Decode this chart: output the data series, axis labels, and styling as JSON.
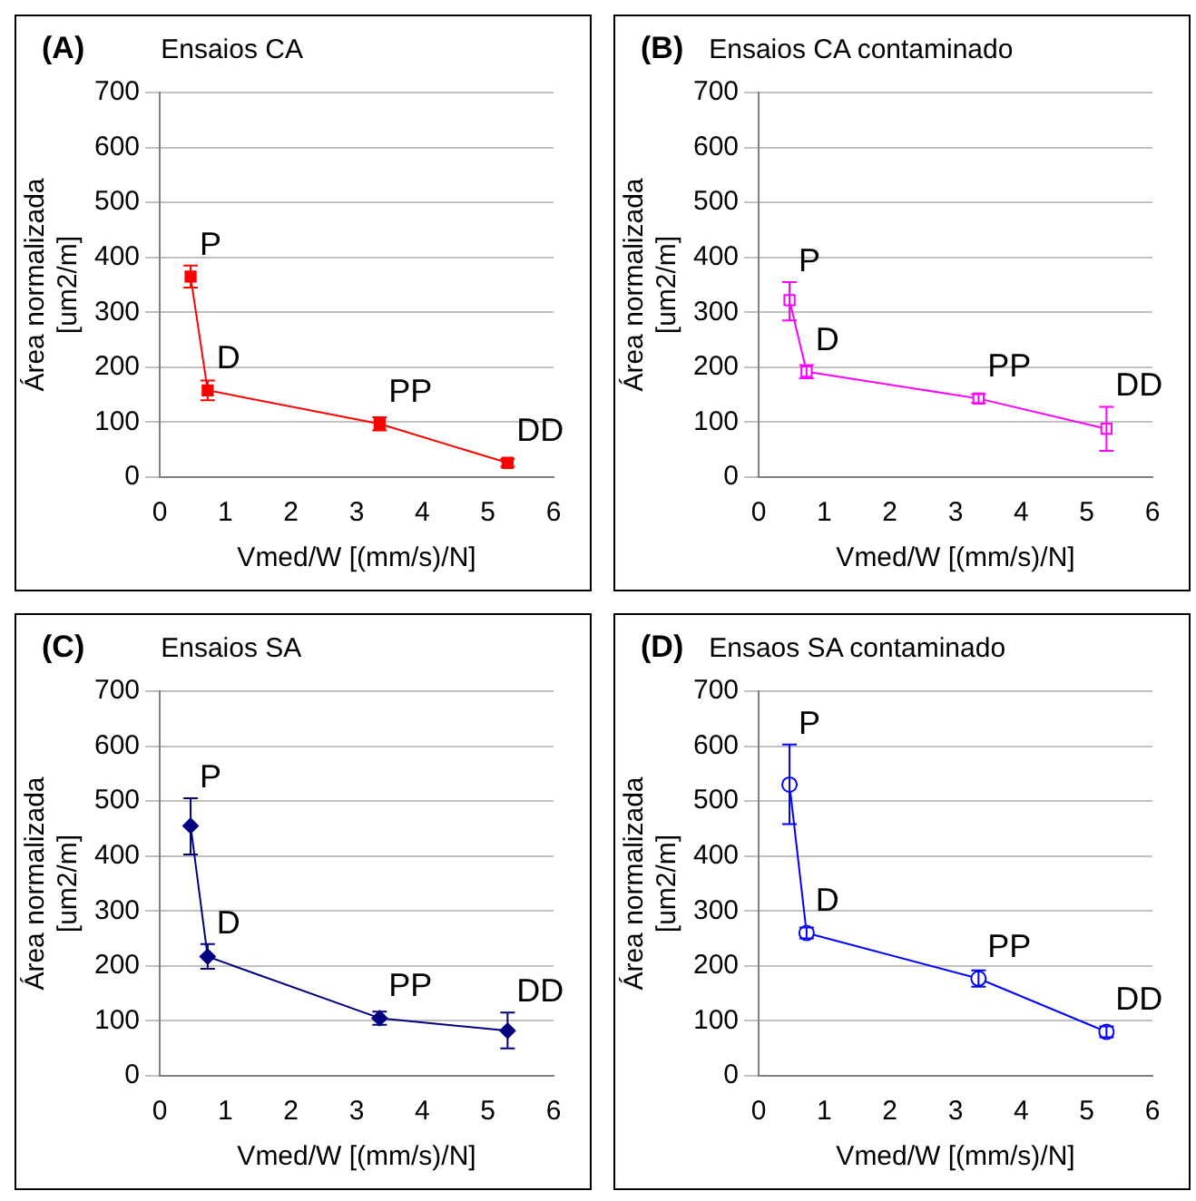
{
  "chart_data": [
    {
      "type": "line",
      "title": "Ensaios CA",
      "annotations": [
        "(A)",
        {
          "text": "P",
          "x": 0.47,
          "y": 365
        },
        {
          "text": "D",
          "x": 0.73,
          "y": 158
        },
        {
          "text": "PP",
          "x": 3.35,
          "y": 97
        },
        {
          "text": "DD",
          "x": 5.3,
          "y": 26
        }
      ],
      "xlabel": "Vmed/W [(mm/s)/N]",
      "ylabel": "Área normalizada [um2/m]",
      "x": [
        0.47,
        0.73,
        3.35,
        5.3
      ],
      "series": [
        {
          "color": "#ff0000",
          "values": [
            365,
            158,
            97,
            26
          ],
          "errors": [
            20,
            18,
            12,
            7
          ]
        }
      ],
      "marker": "square",
      "xlim": [
        0,
        6
      ],
      "xticks": [
        0,
        1,
        2,
        3,
        4,
        5,
        6
      ],
      "ylim": [
        0,
        700
      ],
      "yticks": [
        0,
        100,
        200,
        300,
        400,
        500,
        600,
        700
      ],
      "grid": "y"
    },
    {
      "type": "line",
      "title": "Ensaios CA contaminado",
      "annotations": [
        "(B)",
        {
          "text": "P",
          "x": 0.47,
          "y": 322
        },
        {
          "text": "D",
          "x": 0.73,
          "y": 192
        },
        {
          "text": "PP",
          "x": 3.35,
          "y": 143
        },
        {
          "text": "DD",
          "x": 5.3,
          "y": 88
        }
      ],
      "xlabel": "Vmed/W [(mm/s)/N]",
      "ylabel": "Área normalizada [um2/m]",
      "x": [
        0.47,
        0.73,
        3.35,
        5.3
      ],
      "series": [
        {
          "color": "#ff00ff",
          "values": [
            322,
            192,
            143,
            88
          ],
          "errors": [
            [
              285,
              355
            ],
            12,
            8,
            [
              48,
              128
            ]
          ]
        }
      ],
      "marker": "square",
      "xlim": [
        0,
        6
      ],
      "xticks": [
        0,
        1,
        2,
        3,
        4,
        5,
        6
      ],
      "ylim": [
        0,
        700
      ],
      "yticks": [
        0,
        100,
        200,
        300,
        400,
        500,
        600,
        700
      ],
      "grid": "y"
    },
    {
      "type": "line",
      "title": "Ensaios SA",
      "annotations": [
        "(C)",
        {
          "text": "P",
          "x": 0.47,
          "y": 455
        },
        {
          "text": "D",
          "x": 0.73,
          "y": 217
        },
        {
          "text": "PP",
          "x": 3.35,
          "y": 105
        },
        {
          "text": "DD",
          "x": 5.3,
          "y": 82
        }
      ],
      "xlabel": "Vmed/W [(mm/s)/N]",
      "ylabel": "Área normalizada [um2/m]",
      "x": [
        0.47,
        0.73,
        3.35,
        5.3
      ],
      "series": [
        {
          "color": "#000080",
          "values": [
            455,
            217,
            105,
            82
          ],
          "errors": [
            [
              403,
              505
            ],
            [
              195,
              240
            ],
            12,
            [
              50,
              115
            ]
          ]
        }
      ],
      "marker": "diamond",
      "xlim": [
        0,
        6
      ],
      "xticks": [
        0,
        1,
        2,
        3,
        4,
        5,
        6
      ],
      "ylim": [
        0,
        700
      ],
      "yticks": [
        0,
        100,
        200,
        300,
        400,
        500,
        600,
        700
      ],
      "grid": "y"
    },
    {
      "type": "line",
      "title": "Ensaos SA contaminado",
      "annotations": [
        "(D)",
        {
          "text": "P",
          "x": 0.47,
          "y": 530
        },
        {
          "text": "D",
          "x": 0.73,
          "y": 260
        },
        {
          "text": "PP",
          "x": 3.35,
          "y": 177
        },
        {
          "text": "DD",
          "x": 5.3,
          "y": 80
        }
      ],
      "xlabel": "Vmed/W [(mm/s)/N]",
      "ylabel": "Área normalizada [um2/m]",
      "x": [
        0.47,
        0.73,
        3.35,
        5.3
      ],
      "series": [
        {
          "color": "#0000ff",
          "values": [
            530,
            260,
            177,
            80
          ],
          "errors": [
            [
              458,
              603
            ],
            10,
            15,
            10
          ]
        }
      ],
      "marker": "circle",
      "xlim": [
        0,
        6
      ],
      "xticks": [
        0,
        1,
        2,
        3,
        4,
        5,
        6
      ],
      "ylim": [
        0,
        700
      ],
      "yticks": [
        0,
        100,
        200,
        300,
        400,
        500,
        600,
        700
      ],
      "grid": "y"
    }
  ]
}
